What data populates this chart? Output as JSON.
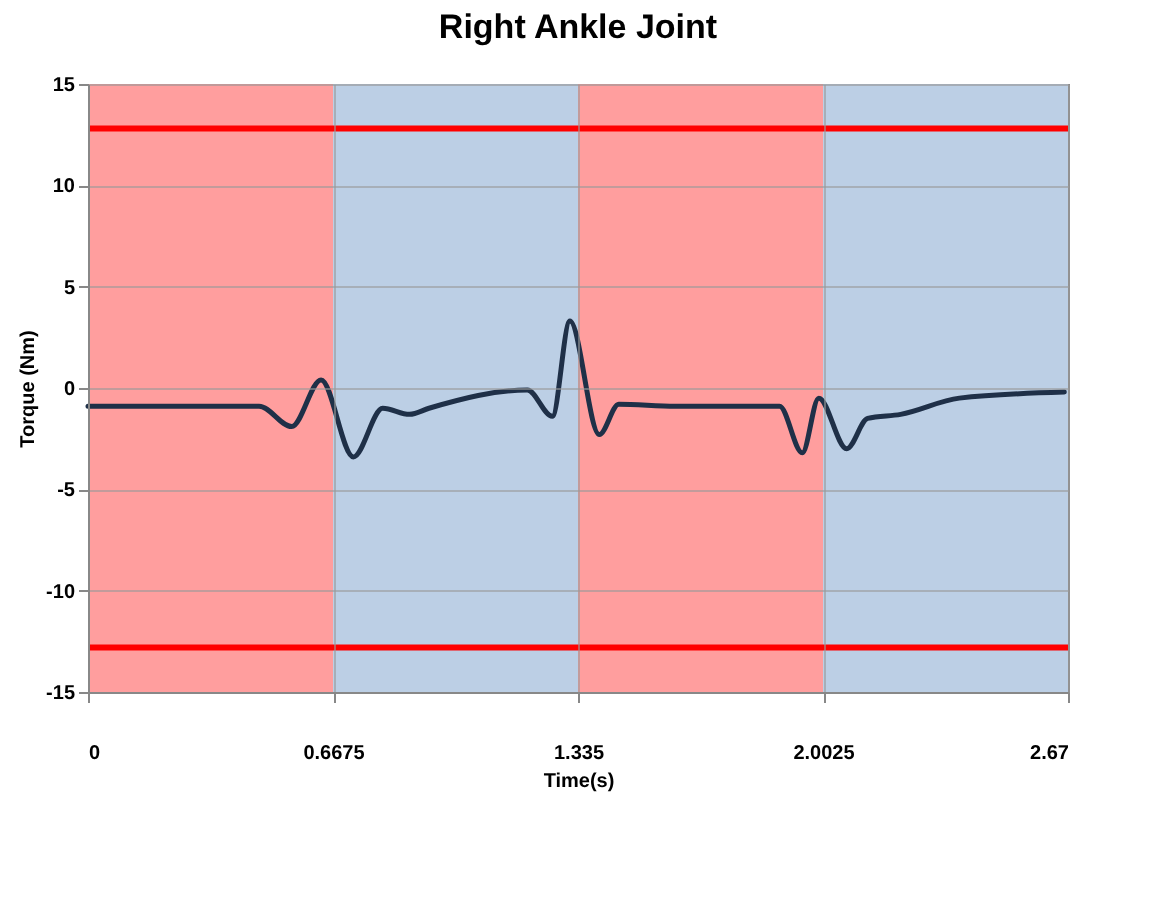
{
  "chart_data": {
    "type": "line",
    "title": "Right Ankle Joint",
    "xlabel": "Time(s)",
    "ylabel": "Torque (Nm)",
    "x": [
      0,
      0.2,
      0.466,
      0.555,
      0.635,
      0.723,
      0.803,
      0.876,
      0.929,
      1.197,
      1.265,
      1.313,
      1.393,
      1.446,
      1.6,
      1.884,
      1.946,
      1.991,
      2.067,
      2.124,
      2.214,
      2.374,
      2.66
    ],
    "series": [
      {
        "color": "#1f3048",
        "values": [
          -0.9,
          -0.9,
          -0.9,
          -1.9,
          0.4,
          -3.4,
          -1.0,
          -1.3,
          -1.0,
          -0.1,
          -1.4,
          3.3,
          -2.3,
          -0.8,
          -0.9,
          -0.9,
          -3.2,
          -0.5,
          -3.0,
          -1.5,
          -1.3,
          -0.5,
          -0.2
        ]
      }
    ],
    "xlim": [
      0,
      2.67
    ],
    "xticks": [
      0,
      0.6675,
      1.335,
      2.0025,
      2.67
    ],
    "ylim": [
      -15,
      15
    ],
    "yticks": [
      -15,
      -10,
      -5,
      0,
      5,
      10,
      15
    ],
    "grid": true,
    "bands": [
      {
        "axis": "x",
        "from": 0,
        "to": 0.6675,
        "color": "#ff9999"
      },
      {
        "axis": "x",
        "from": 0.6675,
        "to": 1.335,
        "color": "#b8cce4"
      },
      {
        "axis": "x",
        "from": 1.335,
        "to": 2.0025,
        "color": "#ff9999"
      },
      {
        "axis": "x",
        "from": 2.0025,
        "to": 2.67,
        "color": "#b8cce4"
      }
    ],
    "ref_lines": [
      {
        "axis": "y",
        "value": 12.8,
        "color": "#ff0000"
      },
      {
        "axis": "y",
        "value": -12.8,
        "color": "#ff0000"
      }
    ]
  }
}
